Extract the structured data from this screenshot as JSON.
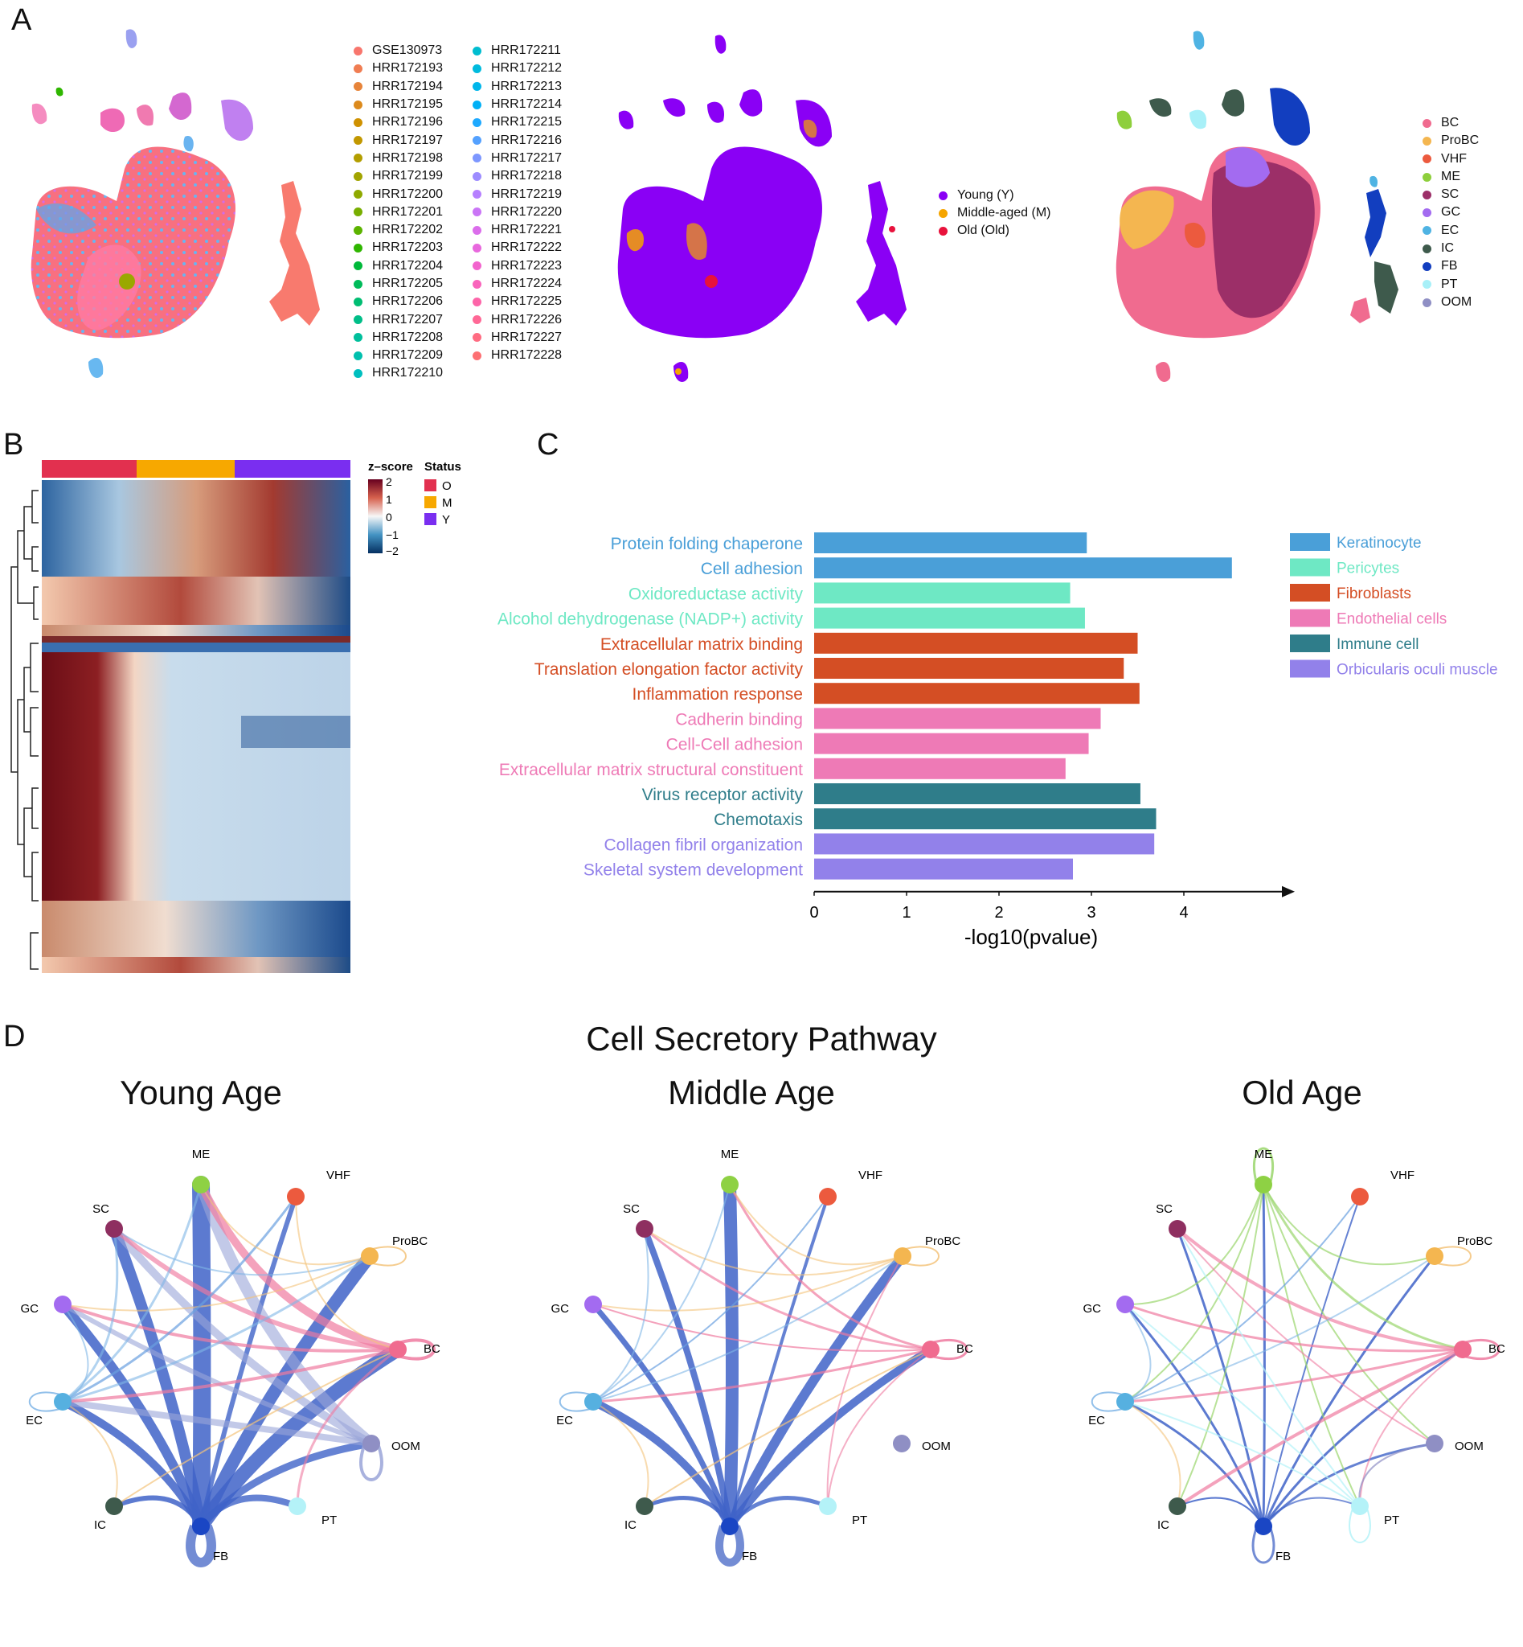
{
  "panel_labels": {
    "a": "A",
    "b": "B",
    "c": "C",
    "d": "D"
  },
  "panel_a": {
    "samples_legend": [
      {
        "label": "GSE130973",
        "color": "#f8766d"
      },
      {
        "label": "HRR172193",
        "color": "#f07d52"
      },
      {
        "label": "HRR172194",
        "color": "#e7843a"
      },
      {
        "label": "HRR172195",
        "color": "#dc8a1c"
      },
      {
        "label": "HRR172196",
        "color": "#cf9100"
      },
      {
        "label": "HRR172197",
        "color": "#c29800"
      },
      {
        "label": "HRR172198",
        "color": "#b39e00"
      },
      {
        "label": "HRR172199",
        "color": "#a2a400"
      },
      {
        "label": "HRR172200",
        "color": "#8fa900"
      },
      {
        "label": "HRR172201",
        "color": "#78ae00"
      },
      {
        "label": "HRR172202",
        "color": "#5cb300"
      },
      {
        "label": "HRR172203",
        "color": "#2fb600"
      },
      {
        "label": "HRR172204",
        "color": "#00b93a"
      },
      {
        "label": "HRR172205",
        "color": "#00bb5a"
      },
      {
        "label": "HRR172206",
        "color": "#00bd72"
      },
      {
        "label": "HRR172207",
        "color": "#00be88"
      },
      {
        "label": "HRR172208",
        "color": "#00bf9c"
      },
      {
        "label": "HRR172209",
        "color": "#00c0ae"
      },
      {
        "label": "HRR172210",
        "color": "#00bfbf"
      },
      {
        "label": "HRR172211",
        "color": "#00bdd0"
      },
      {
        "label": "HRR172212",
        "color": "#00bbde"
      },
      {
        "label": "HRR172213",
        "color": "#00b6eb"
      },
      {
        "label": "HRR172214",
        "color": "#00b0f6"
      },
      {
        "label": "HRR172215",
        "color": "#1ea9ff"
      },
      {
        "label": "HRR172216",
        "color": "#54a1ff"
      },
      {
        "label": "HRR172217",
        "color": "#7d97ff"
      },
      {
        "label": "HRR172218",
        "color": "#9d8cff"
      },
      {
        "label": "HRR172219",
        "color": "#b680ff"
      },
      {
        "label": "HRR172220",
        "color": "#ca75f6"
      },
      {
        "label": "HRR172221",
        "color": "#db6deb"
      },
      {
        "label": "HRR172222",
        "color": "#e868dd"
      },
      {
        "label": "HRR172223",
        "color": "#f264cd"
      },
      {
        "label": "HRR172224",
        "color": "#f964bc"
      },
      {
        "label": "HRR172225",
        "color": "#fd65a9"
      },
      {
        "label": "HRR172226",
        "color": "#ff6896"
      },
      {
        "label": "HRR172227",
        "color": "#ff6c82"
      },
      {
        "label": "HRR172228",
        "color": "#fd7073"
      }
    ],
    "age_legend": [
      {
        "label": "Young (Y)",
        "color": "#8a00f5"
      },
      {
        "label": "Middle-aged (M)",
        "color": "#f5a500"
      },
      {
        "label": "Old (Old)",
        "color": "#e8123c"
      }
    ],
    "celltype_legend": [
      {
        "label": "BC",
        "color": "#f06b8f"
      },
      {
        "label": "ProBC",
        "color": "#f4b650"
      },
      {
        "label": "VHF",
        "color": "#ec5a3e"
      },
      {
        "label": "ME",
        "color": "#8ecf3c"
      },
      {
        "label": "SC",
        "color": "#9c2f68"
      },
      {
        "label": "GC",
        "color": "#a36bf0"
      },
      {
        "label": "EC",
        "color": "#4fb3e3"
      },
      {
        "label": "IC",
        "color": "#3e5a4c"
      },
      {
        "label": "FB",
        "color": "#123ebf"
      },
      {
        "label": "PT",
        "color": "#a8f0f8"
      },
      {
        "label": "OOM",
        "color": "#8f8fc4"
      }
    ]
  },
  "panel_b": {
    "colorbar_title": "z–score",
    "colorbar_ticks": [
      "2",
      "1",
      "0",
      "−1",
      "−2"
    ],
    "status_title": "Status",
    "status_legend": [
      {
        "label": "O",
        "color": "#e2304f"
      },
      {
        "label": "M",
        "color": "#f7a800"
      },
      {
        "label": "Y",
        "color": "#7a2ef0"
      }
    ]
  },
  "chart_data": {
    "type": "bar",
    "orientation": "horizontal",
    "categories": [
      "Protein folding chaperone",
      "Cell adhesion",
      "Oxidoreductase activity",
      "Alcohol dehydrogenase (NADP+) activity",
      "Extracellular matrix binding",
      "Translation elongation factor activity",
      "Inflammation response",
      "Cadherin binding",
      "Cell-Cell adhesion",
      "Extracellular matrix structural constituent",
      "Virus receptor activity",
      "Chemotaxis",
      "Collagen fibril organization",
      "Skeletal system development"
    ],
    "values": [
      2.95,
      4.52,
      2.77,
      2.93,
      3.5,
      3.35,
      3.52,
      3.1,
      2.97,
      2.72,
      3.53,
      3.7,
      3.68,
      2.8
    ],
    "groups": [
      "Keratinocyte",
      "Keratinocyte",
      "Pericytes",
      "Pericytes",
      "Fibroblasts",
      "Fibroblasts",
      "Fibroblasts",
      "Endothelial cells",
      "Endothelial cells",
      "Endothelial cells",
      "Immune cell",
      "Immune cell",
      "Orbicularis oculi muscle",
      "Orbicularis oculi muscle"
    ],
    "legend": [
      {
        "label": "Keratinocyte",
        "color": "#4a9fd8"
      },
      {
        "label": "Pericytes",
        "color": "#6ee8c4"
      },
      {
        "label": "Fibroblasts",
        "color": "#d44e24"
      },
      {
        "label": "Endothelial cells",
        "color": "#ee7ab6"
      },
      {
        "label": "Immune cell",
        "color": "#2f7d8a"
      },
      {
        "label": "Orbicularis oculi muscle",
        "color": "#9281ea"
      }
    ],
    "xlabel": "-log10(pvalue)",
    "xticks": [
      "0",
      "1",
      "2",
      "3",
      "4"
    ],
    "xlim": [
      0,
      5.1
    ],
    "legend_position": "right"
  },
  "panel_d": {
    "title": "Cell Secretory Pathway",
    "networks": [
      {
        "title": "Young Age",
        "key": "young"
      },
      {
        "title": "Middle Age",
        "key": "middle"
      },
      {
        "title": "Old Age",
        "key": "old"
      }
    ],
    "nodes": [
      {
        "label": "ME",
        "color": "#8ed144"
      },
      {
        "label": "VHF",
        "color": "#ec5a3e"
      },
      {
        "label": "ProBC",
        "color": "#f4b650"
      },
      {
        "label": "BC",
        "color": "#f06b8f"
      },
      {
        "label": "OOM",
        "color": "#8f8fc4"
      },
      {
        "label": "PT",
        "color": "#b4f2f8"
      },
      {
        "label": "FB",
        "color": "#1a46c4"
      },
      {
        "label": "IC",
        "color": "#3e5a4c"
      },
      {
        "label": "EC",
        "color": "#56b0e0"
      },
      {
        "label": "GC",
        "color": "#a36bf0"
      },
      {
        "label": "SC",
        "color": "#8e2f60"
      }
    ]
  }
}
